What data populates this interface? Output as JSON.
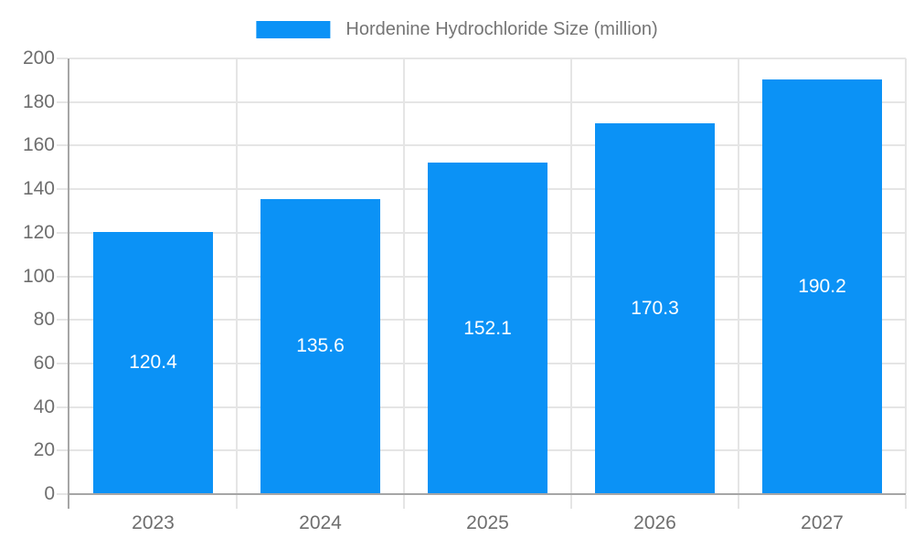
{
  "legend": {
    "label": "Hordenine Hydrochloride Size (million)"
  },
  "chart_data": {
    "type": "bar",
    "title": "",
    "xlabel": "",
    "ylabel": "",
    "categories": [
      "2023",
      "2024",
      "2025",
      "2026",
      "2027"
    ],
    "values": [
      120.4,
      135.6,
      152.1,
      170.3,
      190.2
    ],
    "series_name": "Hordenine Hydrochloride Size (million)",
    "value_labels": [
      "120.4",
      "135.6",
      "152.1",
      "170.3",
      "190.2"
    ],
    "ylim": [
      0,
      200
    ],
    "ytick_step": 20,
    "ytick_labels": [
      "0",
      "20",
      "40",
      "60",
      "80",
      "100",
      "120",
      "140",
      "160",
      "180",
      "200"
    ],
    "grid": true,
    "legend_position": "top-center",
    "colors": {
      "bar": "#0b92f6",
      "value_label": "#ffffff",
      "axis_text": "#6e6e6e",
      "legend_text": "#757575",
      "gridline": "#e5e5e5",
      "axis_line": "#a6a6a6",
      "background": "#ffffff"
    }
  }
}
